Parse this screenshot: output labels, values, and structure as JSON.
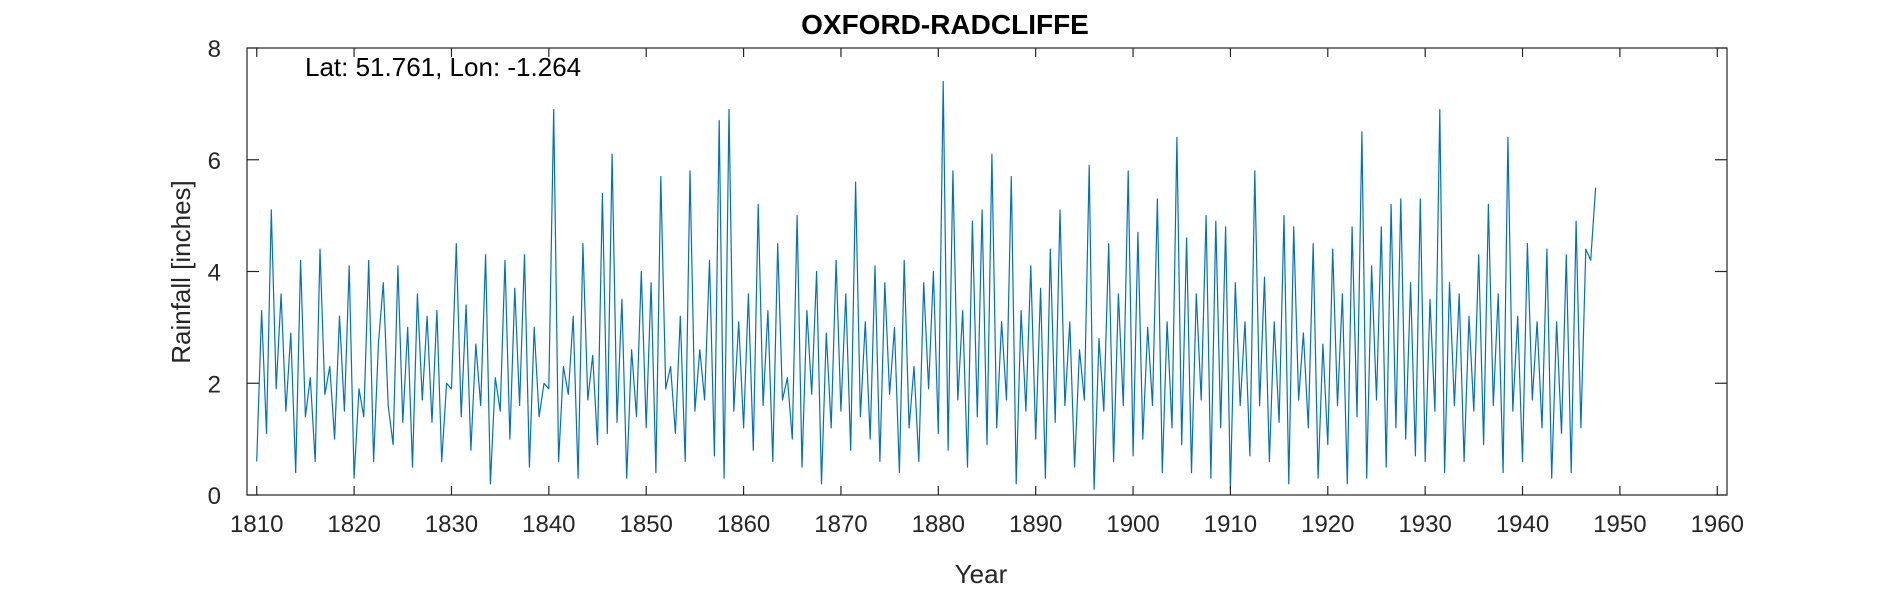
{
  "chart_data": {
    "type": "line",
    "title": "OXFORD-RADCLIFFE",
    "xlabel": "Year",
    "ylabel": "Rainfall [inches]",
    "annotation": "Lat: 51.761, Lon: -1.264",
    "xlim": [
      1809,
      1961
    ],
    "ylim": [
      0,
      8
    ],
    "xticks": [
      1810,
      1820,
      1830,
      1840,
      1850,
      1860,
      1870,
      1880,
      1890,
      1900,
      1910,
      1920,
      1930,
      1940,
      1950,
      1960
    ],
    "yticks": [
      0,
      2,
      4,
      6,
      8
    ],
    "grid": false,
    "series_color": "#0072BD",
    "resolution": "monthly",
    "series": [
      {
        "x_start": 1810.0,
        "x_step": 0.5,
        "values": [
          0.6,
          3.3,
          1.1,
          5.1,
          1.9,
          3.6,
          1.5,
          2.9,
          0.4,
          4.2,
          1.4,
          2.1,
          0.6,
          4.4,
          1.8,
          2.3,
          1.0,
          3.2,
          1.5,
          4.1,
          0.3,
          1.9,
          1.4,
          4.2,
          0.6,
          2.7,
          3.8,
          1.6,
          0.9,
          4.1,
          1.3,
          3.0,
          0.5,
          3.6,
          1.7,
          3.2,
          1.3,
          3.3,
          0.6,
          2.0,
          1.9,
          4.5,
          1.4,
          3.4,
          0.8,
          2.7,
          1.6,
          4.3,
          0.2,
          2.1,
          1.5,
          4.2,
          1.0,
          3.7,
          1.6,
          4.3,
          0.5,
          3.0,
          1.4,
          2.0,
          1.9,
          6.9,
          0.6,
          2.3,
          1.8,
          3.2,
          0.3,
          4.5,
          1.7,
          2.5,
          0.9,
          5.4,
          1.1,
          6.1,
          1.3,
          3.5,
          0.3,
          2.6,
          1.4,
          4.0,
          1.2,
          3.8,
          0.4,
          5.7,
          1.9,
          2.3,
          1.1,
          3.2,
          0.6,
          5.8,
          1.5,
          2.6,
          1.7,
          4.2,
          0.7,
          6.7,
          0.3,
          6.9,
          1.5,
          3.1,
          1.2,
          3.6,
          0.8,
          5.2,
          1.6,
          3.3,
          0.6,
          4.5,
          1.7,
          2.1,
          1.0,
          5.0,
          0.5,
          3.3,
          1.8,
          4.0,
          0.2,
          2.9,
          1.2,
          4.2,
          1.5,
          3.6,
          0.8,
          5.6,
          1.4,
          3.1,
          1.0,
          4.1,
          0.6,
          3.8,
          1.8,
          3.0,
          0.4,
          4.2,
          1.2,
          2.3,
          0.6,
          3.8,
          1.9,
          4.0,
          1.1,
          7.4,
          0.8,
          5.8,
          1.7,
          3.3,
          0.5,
          4.9,
          1.4,
          5.1,
          0.9,
          6.1,
          1.2,
          3.1,
          1.7,
          5.7,
          0.2,
          3.3,
          1.5,
          4.1,
          1.0,
          3.7,
          0.3,
          4.4,
          1.3,
          5.1,
          1.6,
          3.1,
          0.5,
          2.6,
          1.7,
          5.9,
          0.1,
          2.8,
          1.5,
          4.5,
          0.6,
          3.6,
          1.6,
          5.8,
          0.7,
          4.7,
          1.0,
          3.0,
          1.6,
          5.3,
          0.4,
          3.1,
          1.2,
          6.4,
          0.9,
          4.6,
          0.4,
          3.6,
          1.7,
          5.0,
          0.3,
          4.9,
          1.2,
          4.8,
          0.1,
          3.8,
          1.6,
          3.1,
          0.7,
          5.8,
          1.6,
          3.9,
          0.6,
          3.1,
          1.3,
          5.0,
          0.2,
          4.8,
          1.7,
          2.9,
          1.2,
          4.5,
          0.3,
          2.7,
          0.9,
          4.4,
          1.6,
          3.6,
          0.2,
          4.8,
          1.4,
          6.5,
          0.3,
          4.1,
          1.7,
          4.8,
          0.5,
          5.2,
          1.2,
          5.3,
          1.0,
          3.8,
          0.7,
          5.3,
          0.6,
          3.5,
          1.5,
          6.9,
          0.4,
          3.8,
          1.6,
          3.6,
          0.6,
          3.2,
          1.5,
          4.3,
          0.9,
          5.2,
          1.6,
          3.6,
          0.4,
          6.4,
          1.5,
          3.2,
          0.6,
          4.5,
          1.7,
          3.1,
          1.2,
          4.4,
          0.3,
          3.1,
          1.1,
          4.3,
          0.4,
          4.9,
          1.2,
          4.4,
          4.2,
          5.5
        ]
      }
    ]
  }
}
